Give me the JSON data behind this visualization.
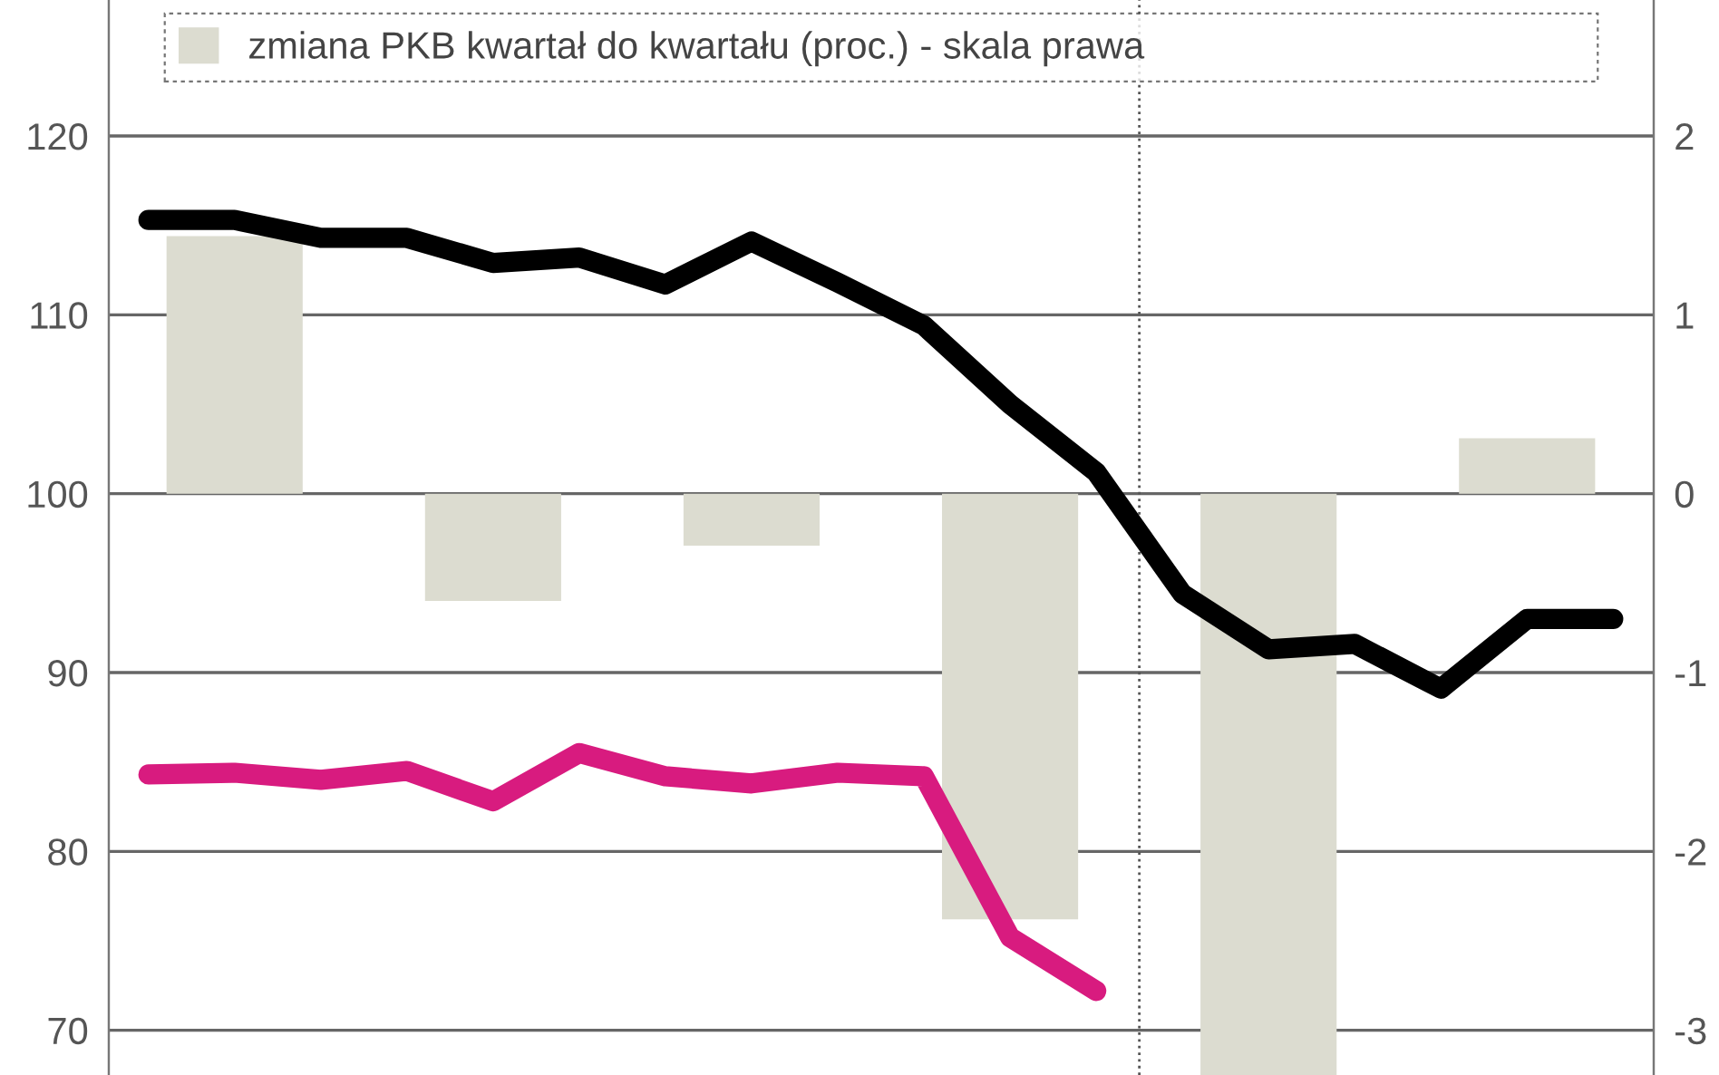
{
  "chart_data": {
    "type": "line",
    "categories": [
      null,
      null,
      null,
      null,
      null,
      null,
      null,
      null,
      null,
      null,
      null,
      null,
      null,
      null,
      null,
      null,
      null,
      null
    ],
    "series": [
      {
        "name": "zmiana PKB kwartał do kwartału (proc.) - skala prawa",
        "type": "bar",
        "axis": "y2",
        "color": "#dcdcd0",
        "values": [
          null,
          1.44,
          null,
          null,
          -0.6,
          null,
          null,
          -0.29,
          null,
          null,
          -2.38,
          null,
          null,
          -3.25,
          null,
          null,
          0.31,
          null
        ]
      },
      {
        "color": "#000000",
        "values": [
          115.3,
          115.3,
          114.3,
          114.3,
          112.9,
          113.2,
          111.7,
          114.1,
          111.8,
          109.4,
          105.0,
          101.2,
          94.4,
          91.3,
          91.6,
          89.1,
          93.0,
          93.0
        ]
      },
      {
        "color": "#d81b7f",
        "values": [
          84.3,
          84.4,
          84.0,
          84.5,
          82.8,
          85.5,
          84.2,
          83.8,
          84.4,
          84.2,
          75.2,
          72.2,
          null,
          null,
          null,
          null,
          null,
          null
        ]
      }
    ],
    "ylim": [
      67.5,
      127.6
    ],
    "yticks": [
      70,
      80,
      90,
      100,
      110,
      120
    ],
    "y2lim": [
      -3.25,
      2.76
    ],
    "y2ticks": [
      -3,
      -2,
      -1,
      0,
      1,
      2
    ],
    "grid": "y",
    "legend": "top",
    "line_style": "solid"
  }
}
